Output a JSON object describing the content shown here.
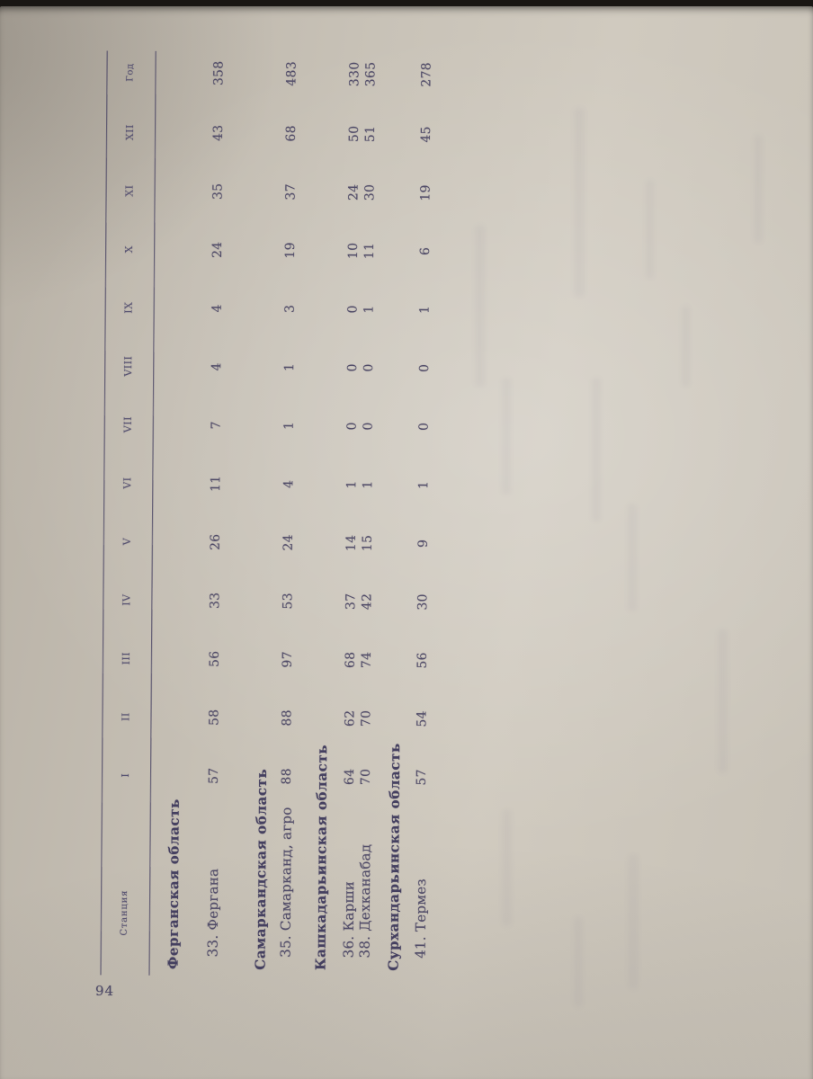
{
  "page": {
    "number": "94"
  },
  "table": {
    "station_header": "Станция",
    "month_headers": [
      "I",
      "II",
      "III",
      "IV",
      "V",
      "VI",
      "VII",
      "VIII",
      "IX",
      "X",
      "XI",
      "XII"
    ],
    "year_header": "Год",
    "sections": [
      {
        "region": "Ферганская область",
        "rows": [
          {
            "station": "33. Фергана",
            "values": [
              57,
              58,
              56,
              33,
              26,
              11,
              7,
              4,
              4,
              24,
              35,
              43
            ],
            "year": 358
          }
        ]
      },
      {
        "region": "Самаркандская область",
        "rows": [
          {
            "station": "35. Самарканд, агро",
            "values": [
              88,
              88,
              97,
              53,
              24,
              4,
              1,
              1,
              3,
              19,
              37,
              68
            ],
            "year": 483
          }
        ]
      },
      {
        "region": "Кашкадарьинская область",
        "rows": [
          {
            "station": "36. Карши",
            "values": [
              64,
              62,
              68,
              37,
              14,
              1,
              0,
              0,
              0,
              10,
              24,
              50
            ],
            "year": 330
          },
          {
            "station": "38. Дехканабад",
            "values": [
              70,
              70,
              74,
              42,
              15,
              1,
              0,
              0,
              1,
              11,
              30,
              51
            ],
            "year": 365
          }
        ]
      },
      {
        "region": "Сурхандарьинская область",
        "rows": [
          {
            "station": "41. Термез",
            "values": [
              57,
              54,
              56,
              30,
              9,
              1,
              0,
              0,
              1,
              6,
              19,
              45
            ],
            "year": 278
          }
        ]
      }
    ]
  },
  "colors": {
    "ink": "#514c68",
    "ink_bold": "#454060",
    "paper": "#c8c2b7",
    "background": "#1a1713"
  }
}
